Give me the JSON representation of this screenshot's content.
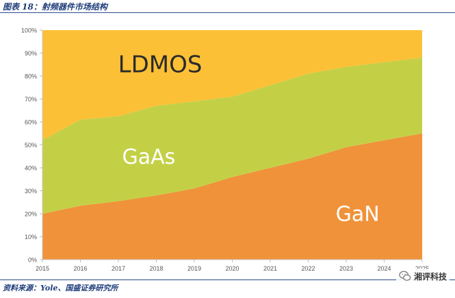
{
  "header": {
    "title": "图表 18：射频器件市场结构"
  },
  "footer": {
    "source": "资料来源：Yole、国盛证券研究所"
  },
  "watermark": {
    "text": "湘评科技"
  },
  "chart_data": {
    "type": "area",
    "stacked": true,
    "x": [
      "2015",
      "2016",
      "2017",
      "2018",
      "2019",
      "2020",
      "2021",
      "2022",
      "2023",
      "2024",
      "2025"
    ],
    "yticks": [
      "0%",
      "10%",
      "20%",
      "30%",
      "40%",
      "50%",
      "60%",
      "70%",
      "80%",
      "90%",
      "100%"
    ],
    "ylim": [
      0,
      100
    ],
    "series": [
      {
        "name": "GaN",
        "color": "#f0923a",
        "values": [
          20,
          23.5,
          25.5,
          28,
          31,
          36,
          40,
          44,
          49,
          52,
          55
        ]
      },
      {
        "name": "GaAs",
        "color": "#c3d046",
        "values": [
          32,
          37.5,
          37,
          39,
          38,
          35,
          36,
          37,
          35,
          34,
          33
        ]
      },
      {
        "name": "LDMOS",
        "color": "#fbc036",
        "values": [
          48,
          39,
          37.5,
          33,
          31,
          29,
          24,
          19,
          16,
          14,
          12
        ]
      }
    ],
    "labels": [
      {
        "text": "LDMOS",
        "series": "LDMOS",
        "color": "#2b2b2b"
      },
      {
        "text": "GaAs",
        "series": "GaAs",
        "color": "#ffffff"
      },
      {
        "text": "GaN",
        "series": "GaN",
        "color": "#ffffff"
      }
    ],
    "grid": false,
    "legend": "none"
  }
}
